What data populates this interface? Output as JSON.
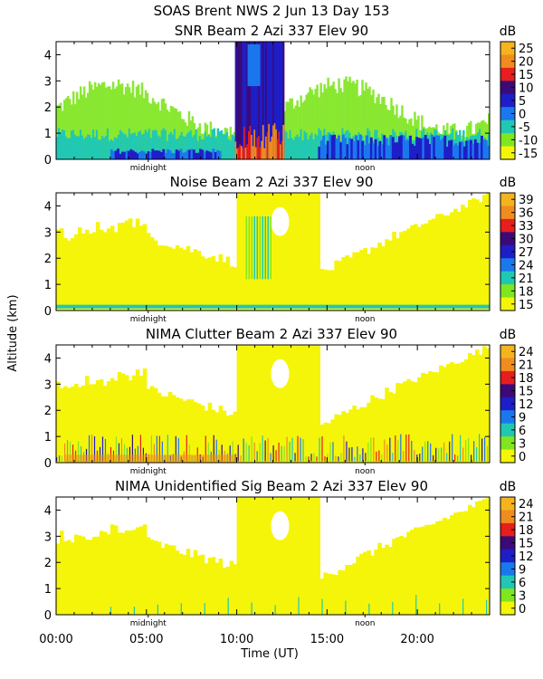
{
  "header": {
    "title_line": "SOAS Brent NWS    2 Jun 13 Day 153"
  },
  "axes_labels": {
    "ylabel": "Altitude (km)",
    "xlabel": "Time (UT)",
    "xticks": [
      "00:00",
      "05:00",
      "10:00",
      "15:00",
      "20:00"
    ],
    "midnight_label": "midnight",
    "noon_label": "noon"
  },
  "palette": [
    "#f5f50a",
    "#80e620",
    "#20c8b4",
    "#1a78ee",
    "#1e1ec8",
    "#3c0a78",
    "#e61e1e",
    "#f08c1e",
    "#f5b41e"
  ],
  "chart_data": [
    {
      "type": "heatmap",
      "title": "SNR Beam 2 Azi 337 Elev 90",
      "unit": "dB",
      "colorbar_ticks": [
        "25",
        "20",
        "15",
        "10",
        "5",
        "0",
        "-5",
        "-10",
        "-15"
      ],
      "xlim_hours": [
        0,
        24
      ],
      "ylim_km": [
        0,
        4.5
      ],
      "yticks": [
        "0",
        "1",
        "2",
        "3",
        "4"
      ]
    },
    {
      "type": "heatmap",
      "title": "Noise Beam 2 Azi 337 Elev 90",
      "unit": "dB",
      "colorbar_ticks": [
        "39",
        "36",
        "33",
        "30",
        "27",
        "24",
        "21",
        "18",
        "15"
      ],
      "xlim_hours": [
        0,
        24
      ],
      "ylim_km": [
        0,
        4.5
      ],
      "yticks": [
        "0",
        "1",
        "2",
        "3",
        "4"
      ]
    },
    {
      "type": "heatmap",
      "title": "NIMA Clutter Beam 2 Azi 337 Elev 90",
      "unit": "dB",
      "colorbar_ticks": [
        "24",
        "21",
        "18",
        "15",
        "12",
        "9",
        "6",
        "3",
        "0"
      ],
      "xlim_hours": [
        0,
        24
      ],
      "ylim_km": [
        0,
        4.5
      ],
      "yticks": [
        "0",
        "1",
        "2",
        "3",
        "4"
      ]
    },
    {
      "type": "heatmap",
      "title": "NIMA Unidentified Sig Beam 2 Azi 337 Elev 90",
      "unit": "dB",
      "colorbar_ticks": [
        "24",
        "21",
        "18",
        "15",
        "12",
        "9",
        "6",
        "3",
        "0"
      ],
      "xlim_hours": [
        0,
        24
      ],
      "ylim_km": [
        0,
        4.5
      ],
      "yticks": [
        "0",
        "1",
        "2",
        "3",
        "4"
      ]
    }
  ]
}
